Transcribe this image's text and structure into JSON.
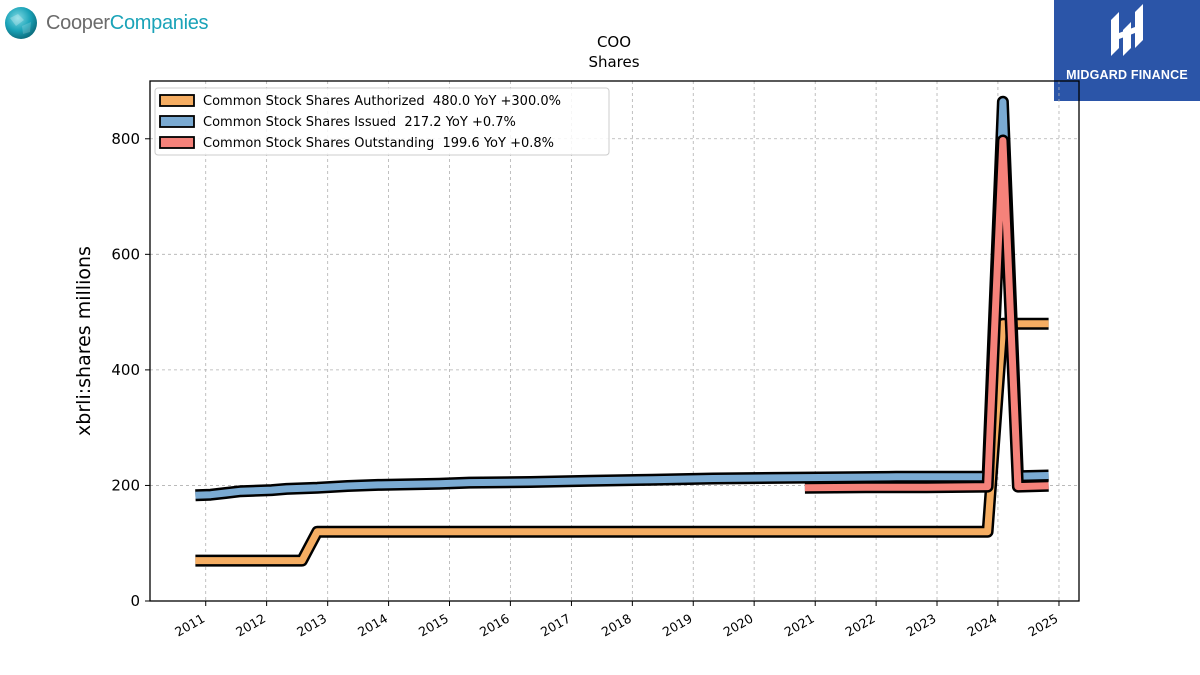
{
  "logos": {
    "left_part1": "Cooper",
    "left_part2": "Companies",
    "right_text": "MIDGARD FINANCE"
  },
  "colors": {
    "authorized": "#f5ad62",
    "issued": "#7aaad2",
    "outstanding": "#f5827a",
    "outline": "#000000",
    "grid": "#b0b0b0",
    "cooper_teal": "#1aa3b8",
    "midgard_blue": "#2b55a8"
  },
  "chart_data": {
    "type": "line",
    "title": "COO",
    "subtitle": "Shares",
    "ylabel": "xbrli:shares millions",
    "xlabel": "",
    "xlim": [
      "2010-02-01",
      "2025-05-01"
    ],
    "ylim": [
      0,
      900
    ],
    "x_ticks": [
      "2011",
      "2012",
      "2013",
      "2014",
      "2015",
      "2016",
      "2017",
      "2018",
      "2019",
      "2020",
      "2021",
      "2022",
      "2023",
      "2024",
      "2025"
    ],
    "y_ticks": [
      0,
      200,
      400,
      600,
      800
    ],
    "grid": true,
    "legend_position": "top-left",
    "series": [
      {
        "name": "Common Stock Shares Authorized",
        "legend": "Common Stock Shares Authorized  480.0 YoY +300.0%",
        "color_key": "authorized",
        "points": [
          [
            "2010-10-31",
            70
          ],
          [
            "2012-07-31",
            70
          ],
          [
            "2012-10-31",
            120
          ],
          [
            "2023-10-31",
            120
          ],
          [
            "2024-01-31",
            480
          ],
          [
            "2024-10-31",
            480
          ]
        ]
      },
      {
        "name": "Common Stock Shares Issued",
        "legend": "Common Stock Shares Issued  217.2 YoY +0.7%",
        "color_key": "issued",
        "points": [
          [
            "2010-10-31",
            183
          ],
          [
            "2011-01-31",
            184
          ],
          [
            "2011-04-30",
            187
          ],
          [
            "2011-07-31",
            190
          ],
          [
            "2012-01-31",
            192
          ],
          [
            "2012-04-30",
            194
          ],
          [
            "2012-10-31",
            196
          ],
          [
            "2013-04-30",
            199
          ],
          [
            "2013-10-31",
            201
          ],
          [
            "2014-10-31",
            203
          ],
          [
            "2015-04-30",
            205
          ],
          [
            "2016-04-30",
            206
          ],
          [
            "2017-04-30",
            208
          ],
          [
            "2018-04-30",
            210
          ],
          [
            "2019-04-30",
            212
          ],
          [
            "2020-04-30",
            213
          ],
          [
            "2021-04-30",
            214
          ],
          [
            "2022-04-30",
            215
          ],
          [
            "2023-10-31",
            215
          ],
          [
            "2024-01-31",
            864
          ],
          [
            "2024-04-30",
            216
          ],
          [
            "2024-10-31",
            217.2
          ]
        ]
      },
      {
        "name": "Common Stock Shares Outstanding",
        "legend": "Common Stock Shares Outstanding  199.6 YoY +0.8%",
        "color_key": "outstanding",
        "points": [
          [
            "2020-10-31",
            196
          ],
          [
            "2021-10-31",
            197
          ],
          [
            "2022-10-31",
            197
          ],
          [
            "2023-10-31",
            198
          ],
          [
            "2024-01-31",
            797
          ],
          [
            "2024-04-30",
            198
          ],
          [
            "2024-10-31",
            199.6
          ]
        ]
      }
    ]
  }
}
